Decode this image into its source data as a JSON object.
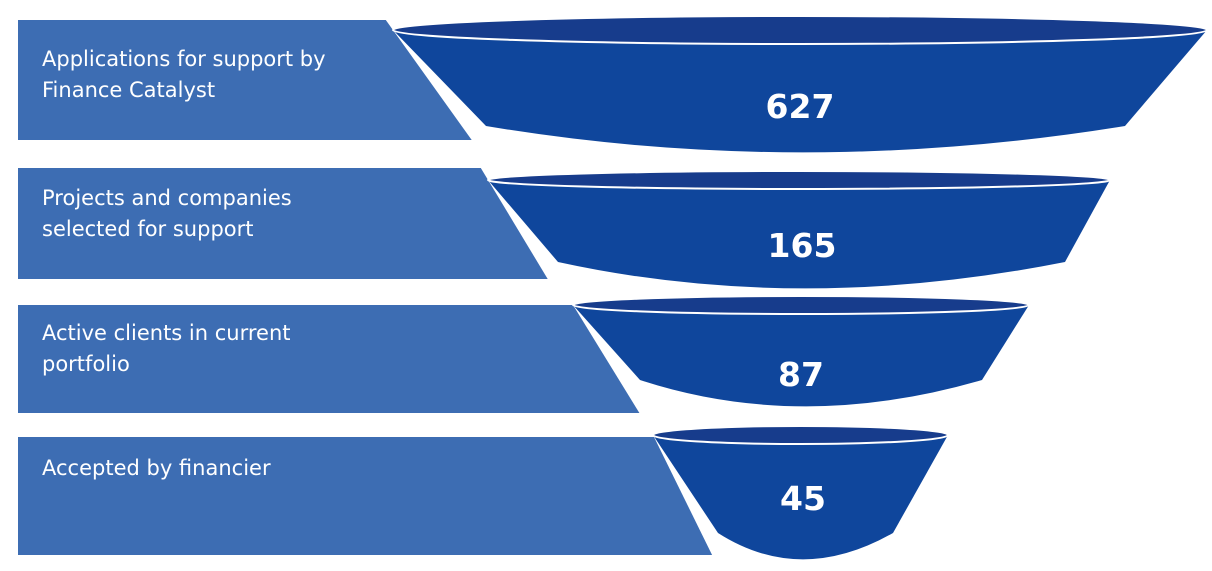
{
  "funnel": {
    "colors": {
      "band": "#3d6db3",
      "funnel_body": "#0f469c",
      "funnel_rim_top": "#173c8c",
      "funnel_rim_edge": "#ffffff",
      "text": "#ffffff"
    },
    "stages": [
      {
        "label": "Applications for support by\nFinance Catalyst",
        "value": "627"
      },
      {
        "label": "Projects and companies\nselected for support",
        "value": "165"
      },
      {
        "label": "Active clients in current\nportfolio",
        "value": "87"
      },
      {
        "label": "Accepted by financier",
        "value": "45"
      }
    ]
  }
}
